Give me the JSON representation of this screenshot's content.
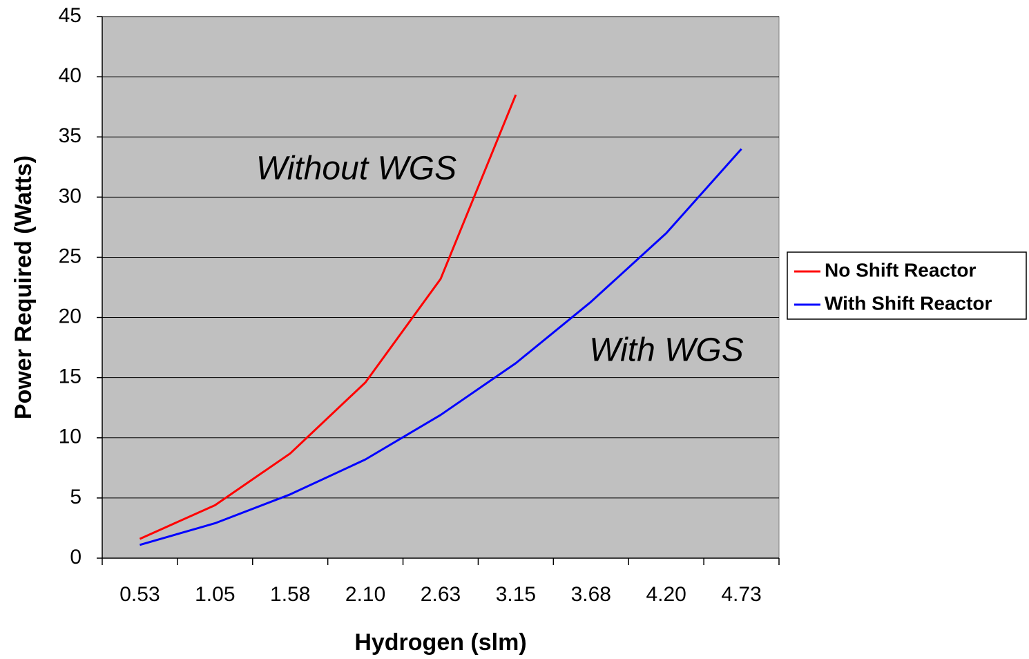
{
  "chart_data": {
    "type": "line",
    "x_label": "Hydrogen (slm)",
    "y_label": "Power Required (Watts)",
    "categories": [
      "0.53",
      "1.05",
      "1.58",
      "2.10",
      "2.63",
      "3.15",
      "3.68",
      "4.20",
      "4.73"
    ],
    "series": [
      {
        "name": "No Shift Reactor",
        "color": "#ff0000",
        "values": [
          1.6,
          4.4,
          8.7,
          14.6,
          23.2,
          38.5,
          null,
          null,
          null
        ]
      },
      {
        "name": "With Shift Reactor",
        "color": "#0000ff",
        "values": [
          1.1,
          2.9,
          5.3,
          8.2,
          11.9,
          16.2,
          21.3,
          27.0,
          34.0
        ]
      }
    ],
    "annotations": [
      "Without WGS",
      "With WGS"
    ],
    "ylim": [
      0,
      45
    ],
    "yticks": [
      0,
      5,
      10,
      15,
      20,
      25,
      30,
      35,
      40,
      45
    ],
    "grid": true,
    "legend": "right",
    "plot_background": "#c0c0c0"
  }
}
